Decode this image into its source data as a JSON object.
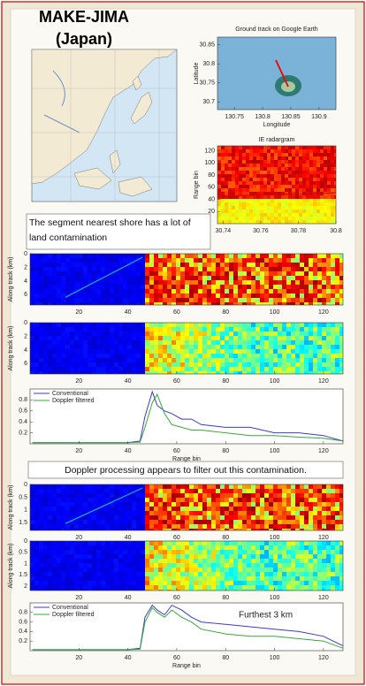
{
  "title_lines": [
    "MAKE-JIMA",
    "(Japan)"
  ],
  "ground_track": {
    "title": "Ground track on Google Earth",
    "xlabel": "Longitude",
    "ylabel": "Latitude",
    "xlim": [
      130.72,
      130.93
    ],
    "ylim": [
      30.68,
      30.87
    ],
    "xticks": [
      130.75,
      130.8,
      130.85,
      130.9
    ],
    "yticks": [
      30.7,
      30.75,
      30.8,
      30.85
    ]
  },
  "radargram": {
    "title": "IE radargram",
    "ylabel": "Range bin",
    "xlim": [
      30.737,
      30.8
    ],
    "ylim": [
      0,
      128
    ],
    "xticks": [
      30.74,
      30.76,
      30.78,
      30.8
    ],
    "yticks": [
      20,
      40,
      60,
      80,
      100,
      120
    ]
  },
  "note_1": "The segment nearest shore has a lot of land contamination",
  "note_2": "Doppler processing appears to filter out this contamination.",
  "heatmaps": [
    {
      "ylabel": "Along track (km)",
      "xlim": [
        0,
        128
      ],
      "ylim": [
        0,
        7.5
      ],
      "xticks": [
        20,
        40,
        60,
        80,
        100,
        120
      ],
      "yticks": [
        0,
        2,
        4,
        6
      ]
    },
    {
      "ylabel": "Along track (km)",
      "xlim": [
        0,
        128
      ],
      "ylim": [
        0,
        7.5
      ],
      "xticks": [
        20,
        40,
        60,
        80,
        100,
        120
      ],
      "yticks": [
        0,
        2,
        4,
        6
      ]
    },
    {
      "ylabel": "Along track (km)",
      "xlim": [
        0,
        128
      ],
      "ylim": [
        0,
        1.8
      ],
      "xticks": [
        20,
        40,
        60,
        80,
        100,
        120
      ],
      "yticks": [
        0,
        0.5,
        1,
        1.5
      ]
    },
    {
      "ylabel": "Along track (km)",
      "xlim": [
        0,
        128
      ],
      "ylim": [
        0,
        2.2
      ],
      "xticks": [
        20,
        40,
        60,
        80,
        100,
        120
      ],
      "yticks": [
        0,
        0.5,
        1,
        1.5,
        2
      ]
    }
  ],
  "profiles": [
    {
      "type": "line",
      "xlabel": "Range bin",
      "xlim": [
        0,
        128
      ],
      "ylim": [
        0,
        1
      ],
      "xticks": [
        20,
        40,
        60,
        80,
        100,
        120
      ],
      "yticks": [
        0.2,
        0.4,
        0.6,
        0.8
      ],
      "x": [
        1,
        40,
        45,
        47,
        50,
        52,
        55,
        58,
        62,
        66,
        70,
        80,
        90,
        100,
        110,
        120,
        128
      ],
      "series": [
        {
          "name": "Conventional",
          "color": "#3a3ad8",
          "values": [
            0.02,
            0.02,
            0.05,
            0.5,
            0.95,
            0.7,
            0.6,
            0.55,
            0.45,
            0.45,
            0.35,
            0.3,
            0.3,
            0.2,
            0.2,
            0.15,
            0.05
          ]
        },
        {
          "name": "Doppler filtered",
          "color": "#3aa83a",
          "values": [
            0.02,
            0.02,
            0.03,
            0.3,
            0.75,
            0.9,
            0.55,
            0.35,
            0.3,
            0.25,
            0.25,
            0.2,
            0.15,
            0.15,
            0.12,
            0.1,
            0.05
          ]
        }
      ]
    },
    {
      "type": "line",
      "xlabel": "Range bin",
      "annotation": "Furthest 3 km",
      "xlim": [
        0,
        128
      ],
      "ylim": [
        0,
        1
      ],
      "xticks": [
        20,
        40,
        60,
        80,
        100,
        120
      ],
      "yticks": [
        0.2,
        0.4,
        0.6,
        0.8
      ],
      "x": [
        1,
        40,
        45,
        47,
        50,
        52,
        55,
        58,
        62,
        66,
        70,
        80,
        90,
        100,
        110,
        120,
        128
      ],
      "series": [
        {
          "name": "Conventional",
          "color": "#3a3ad8",
          "values": [
            0.02,
            0.02,
            0.05,
            0.7,
            0.95,
            0.85,
            0.75,
            0.95,
            0.85,
            0.7,
            0.6,
            0.55,
            0.5,
            0.45,
            0.4,
            0.3,
            0.1
          ]
        },
        {
          "name": "Doppler filtered",
          "color": "#3aa83a",
          "values": [
            0.02,
            0.02,
            0.03,
            0.6,
            0.9,
            0.8,
            0.7,
            0.85,
            0.7,
            0.6,
            0.45,
            0.35,
            0.3,
            0.3,
            0.25,
            0.2,
            0.05
          ]
        }
      ]
    }
  ]
}
